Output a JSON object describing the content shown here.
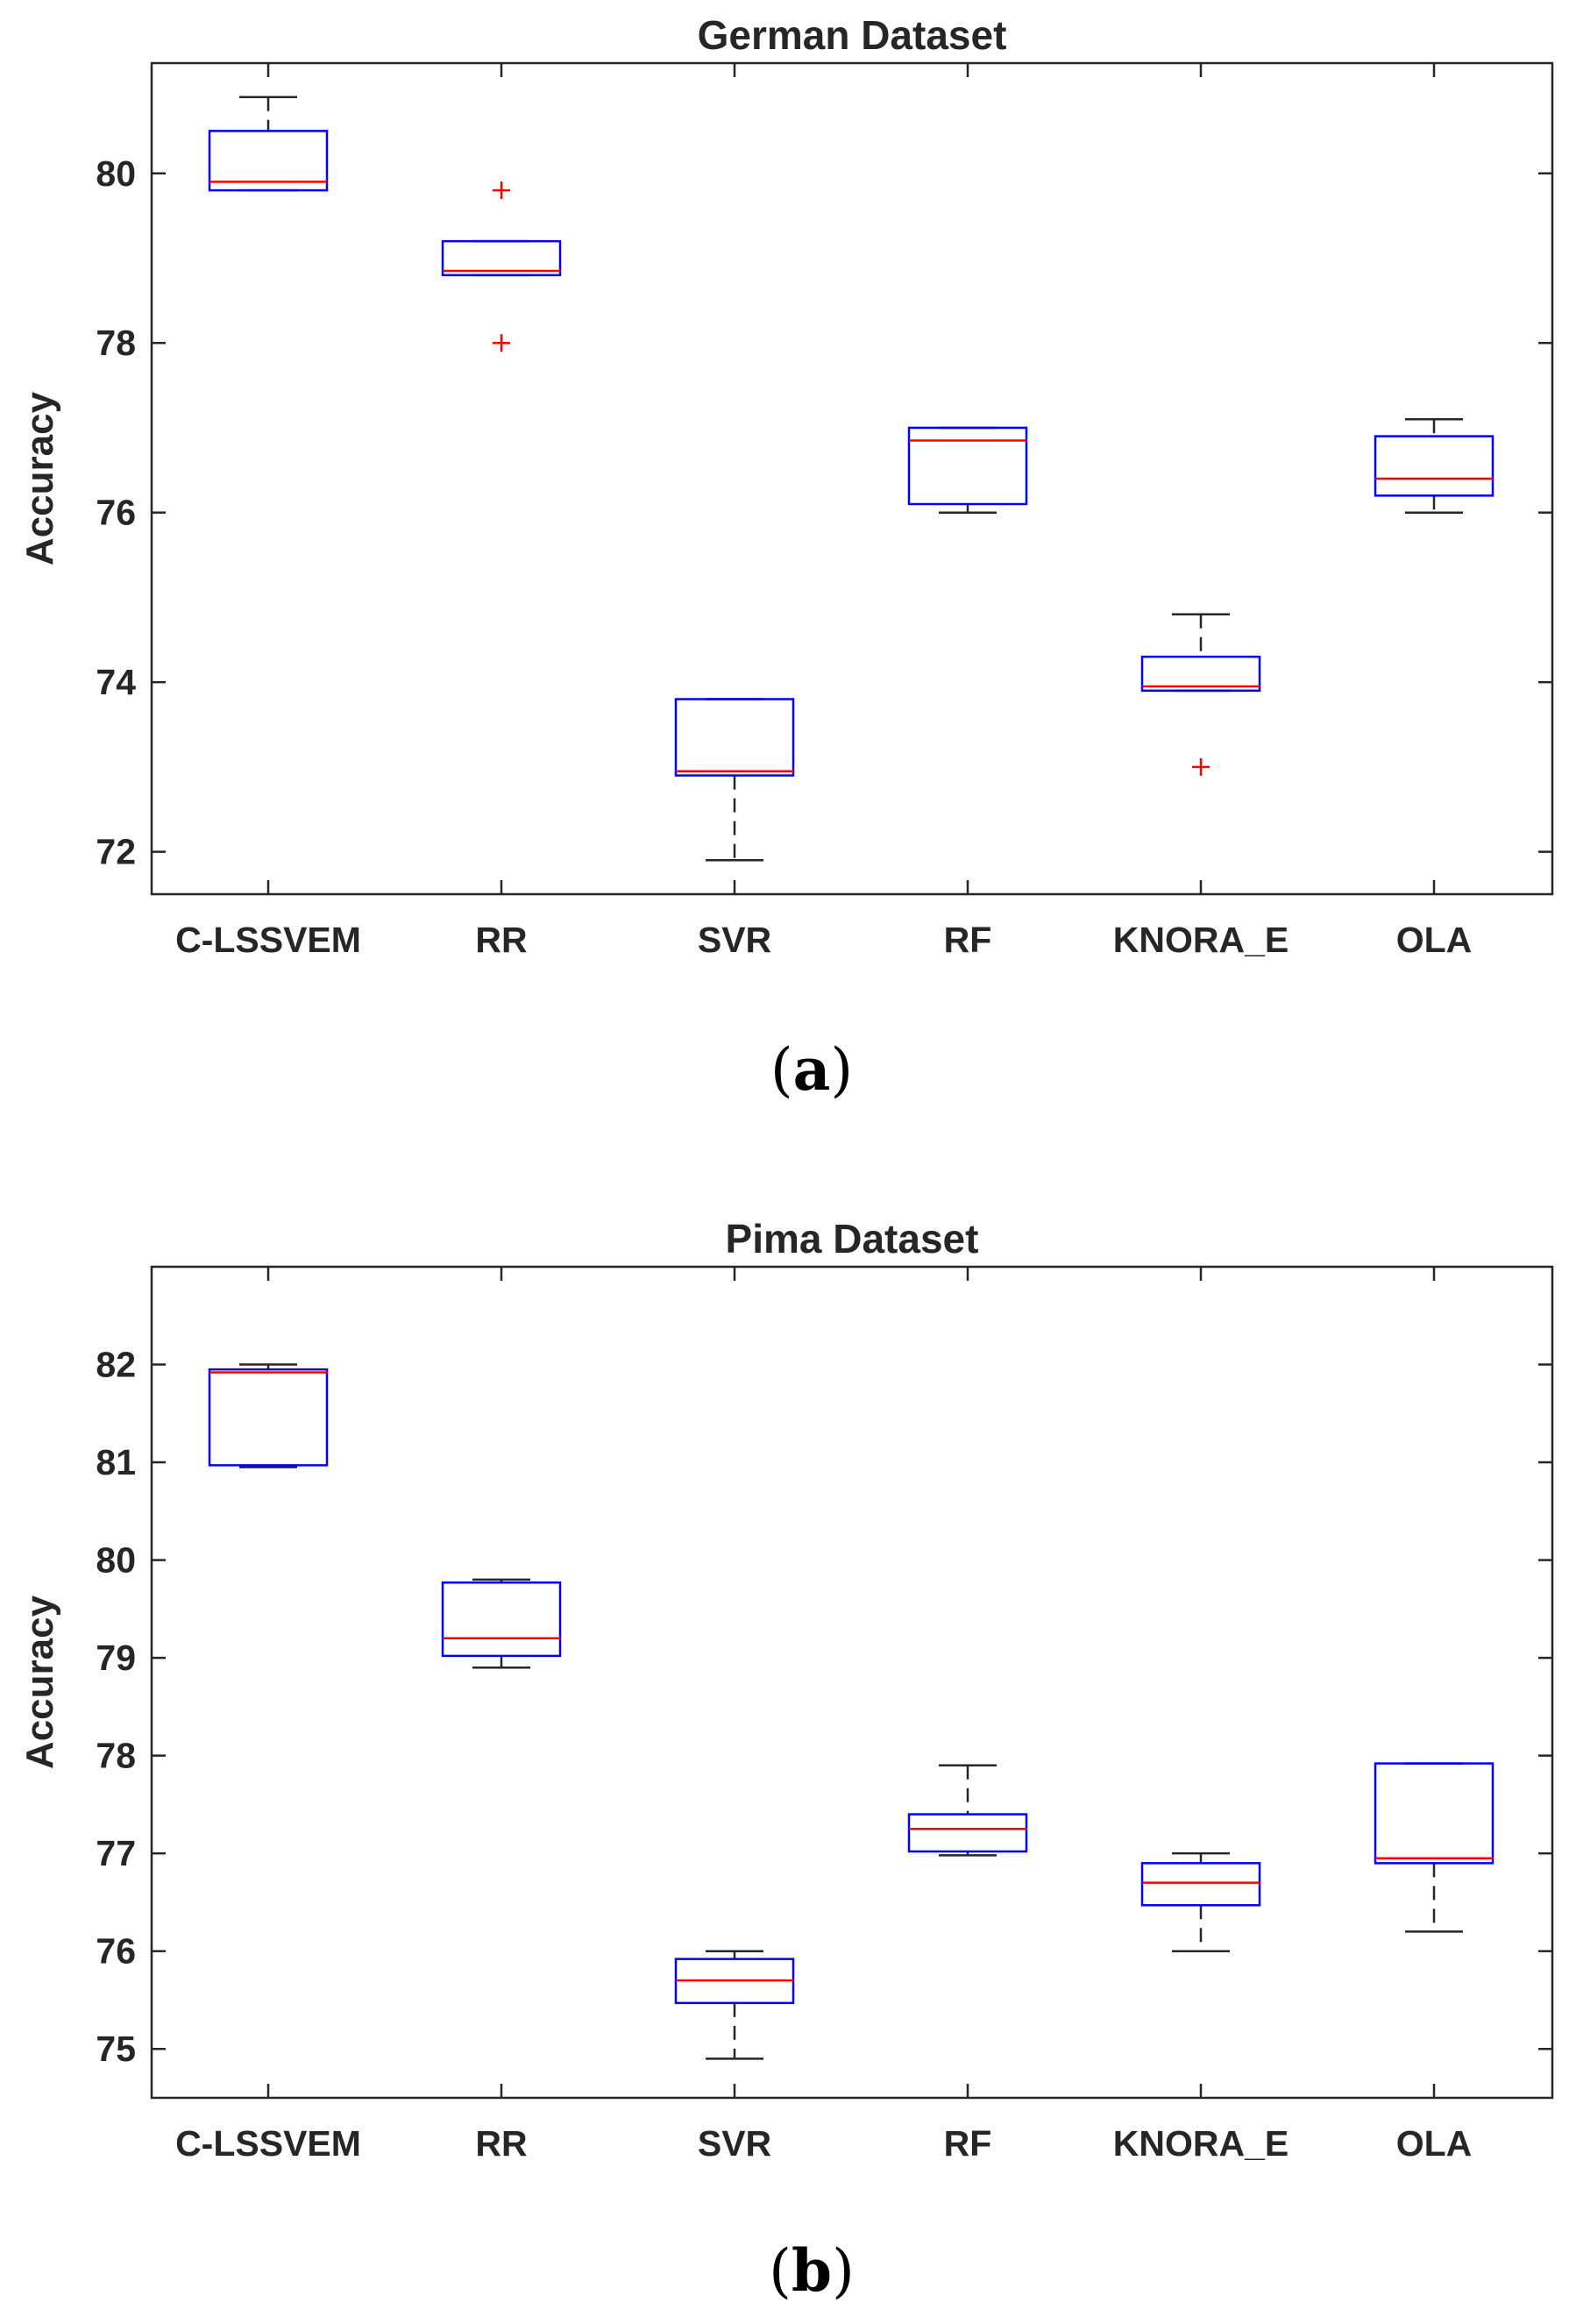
{
  "figure": {
    "caption_a": "a",
    "caption_b": "b"
  },
  "chart_data": [
    {
      "type": "boxplot",
      "title": "German Dataset",
      "ylabel": "Accuracy",
      "xlabel": "",
      "ylim": [
        71.5,
        81.3
      ],
      "yticks": [
        72,
        74,
        76,
        78,
        80
      ],
      "categories": [
        "C-LSSVEM",
        "RR",
        "SVR",
        "RF",
        "KNORA_E",
        "OLA"
      ],
      "boxes": [
        {
          "min": 79.8,
          "q1": 79.8,
          "median": 79.9,
          "q3": 80.5,
          "max": 80.9,
          "outliers": []
        },
        {
          "min": 78.8,
          "q1": 78.8,
          "median": 78.85,
          "q3": 79.2,
          "max": 79.2,
          "outliers": [
            79.8,
            78.0
          ]
        },
        {
          "min": 71.9,
          "q1": 72.9,
          "median": 72.95,
          "q3": 73.8,
          "max": 73.8,
          "outliers": []
        },
        {
          "min": 76.0,
          "q1": 76.1,
          "median": 76.85,
          "q3": 77.0,
          "max": 77.0,
          "outliers": []
        },
        {
          "min": 73.9,
          "q1": 73.9,
          "median": 73.95,
          "q3": 74.3,
          "max": 74.8,
          "outliers": [
            73.0
          ]
        },
        {
          "min": 76.0,
          "q1": 76.2,
          "median": 76.4,
          "q3": 76.9,
          "max": 77.1,
          "outliers": []
        }
      ]
    },
    {
      "type": "boxplot",
      "title": "Pima Dataset",
      "ylabel": "Accuracy",
      "xlabel": "",
      "ylim": [
        74.5,
        83.0
      ],
      "yticks": [
        75,
        76,
        77,
        78,
        79,
        80,
        81,
        82
      ],
      "categories": [
        "C-LSSVEM",
        "RR",
        "SVR",
        "RF",
        "KNORA_E",
        "OLA"
      ],
      "boxes": [
        {
          "min": 80.95,
          "q1": 80.97,
          "median": 81.92,
          "q3": 81.95,
          "max": 82.0,
          "outliers": []
        },
        {
          "min": 78.9,
          "q1": 79.02,
          "median": 79.2,
          "q3": 79.77,
          "max": 79.8,
          "outliers": []
        },
        {
          "min": 74.9,
          "q1": 75.47,
          "median": 75.7,
          "q3": 75.92,
          "max": 76.0,
          "outliers": []
        },
        {
          "min": 76.98,
          "q1": 77.02,
          "median": 77.25,
          "q3": 77.4,
          "max": 77.9,
          "outliers": []
        },
        {
          "min": 76.0,
          "q1": 76.47,
          "median": 76.7,
          "q3": 76.9,
          "max": 77.0,
          "outliers": []
        },
        {
          "min": 76.2,
          "q1": 76.9,
          "median": 76.95,
          "q3": 77.92,
          "max": 77.92,
          "outliers": []
        }
      ]
    }
  ]
}
